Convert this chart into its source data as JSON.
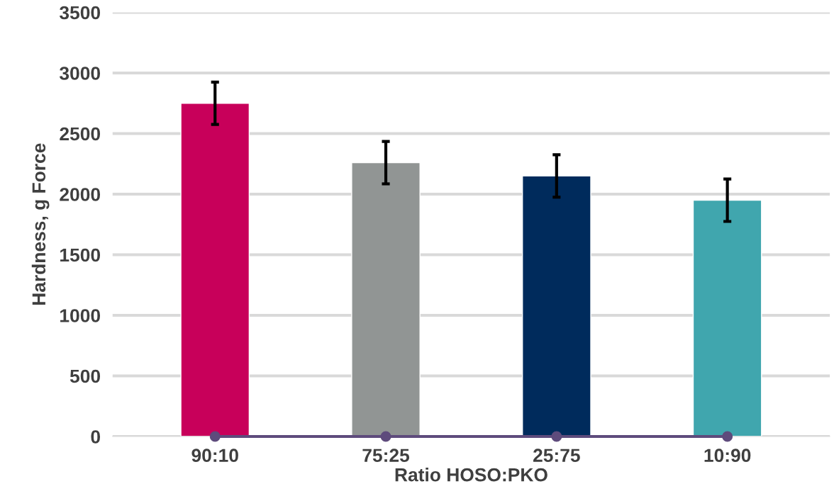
{
  "chart_data": {
    "type": "bar",
    "xlabel": "Ratio HOSO:PKO",
    "ylabel": "Hardness, g Force",
    "categories": [
      "90:10",
      "75:25",
      "25:75",
      "10:90"
    ],
    "series": [
      {
        "values": [
          2750,
          2260,
          2150,
          1950
        ],
        "colors": [
          "#c8005a",
          "#919594",
          "#002b5c",
          "#40a6ae"
        ],
        "errors": [
          175,
          175,
          175,
          175
        ]
      },
      {
        "type": "line",
        "values": [
          0,
          0,
          0,
          0
        ],
        "color": "#5e4b7c",
        "marker": "circle"
      }
    ],
    "ylim": [
      0,
      3500
    ],
    "yticks": [
      0,
      500,
      1000,
      1500,
      2000,
      2500,
      3000,
      3500
    ],
    "grid": "y",
    "legend": false
  }
}
